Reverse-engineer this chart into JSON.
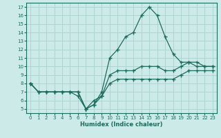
{
  "background_color": "#cceae7",
  "grid_color": "#aed4d0",
  "line_color": "#1a6b5a",
  "xlabel": "Humidex (Indice chaleur)",
  "xlim": [
    -0.5,
    23.5
  ],
  "ylim": [
    4.5,
    17.5
  ],
  "xticks": [
    0,
    1,
    2,
    3,
    4,
    5,
    6,
    7,
    8,
    9,
    10,
    11,
    12,
    13,
    14,
    15,
    16,
    17,
    18,
    19,
    20,
    21,
    22,
    23
  ],
  "yticks": [
    5,
    6,
    7,
    8,
    9,
    10,
    11,
    12,
    13,
    14,
    15,
    16,
    17
  ],
  "line_spike_x": [
    0,
    1,
    2,
    3,
    4,
    5,
    6,
    7,
    8,
    9,
    10,
    11,
    12,
    13,
    14,
    15,
    16,
    17,
    18,
    19,
    20,
    21,
    22,
    23
  ],
  "line_spike_y": [
    8,
    7,
    7,
    7,
    7,
    7,
    6.5,
    5,
    5.5,
    7,
    11,
    12,
    13.5,
    14,
    16,
    17,
    16,
    13.5,
    11.5,
    10.5,
    10.5,
    10,
    10,
    10
  ],
  "line_low_x": [
    0,
    1,
    2,
    3,
    4,
    5,
    6,
    7,
    8,
    9,
    10,
    11,
    12,
    13,
    14,
    15,
    16,
    17,
    18,
    19,
    20,
    21,
    22,
    23
  ],
  "line_low_y": [
    8,
    7,
    7,
    7,
    7,
    7,
    7,
    5,
    5.5,
    6.5,
    8,
    8.5,
    8.5,
    8.5,
    8.5,
    8.5,
    8.5,
    8.5,
    8.5,
    9,
    9.5,
    9.5,
    9.5,
    9.5
  ],
  "line_mid_x": [
    0,
    1,
    2,
    3,
    4,
    5,
    6,
    7,
    8,
    9,
    10,
    11,
    12,
    13,
    14,
    15,
    16,
    17,
    18,
    19,
    20,
    21,
    22,
    23
  ],
  "line_mid_y": [
    8,
    7,
    7,
    7,
    7,
    7,
    7,
    5,
    6,
    6.5,
    9,
    9.5,
    9.5,
    9.5,
    10,
    10,
    10,
    9.5,
    9.5,
    10,
    10.5,
    10.5,
    10,
    10
  ]
}
